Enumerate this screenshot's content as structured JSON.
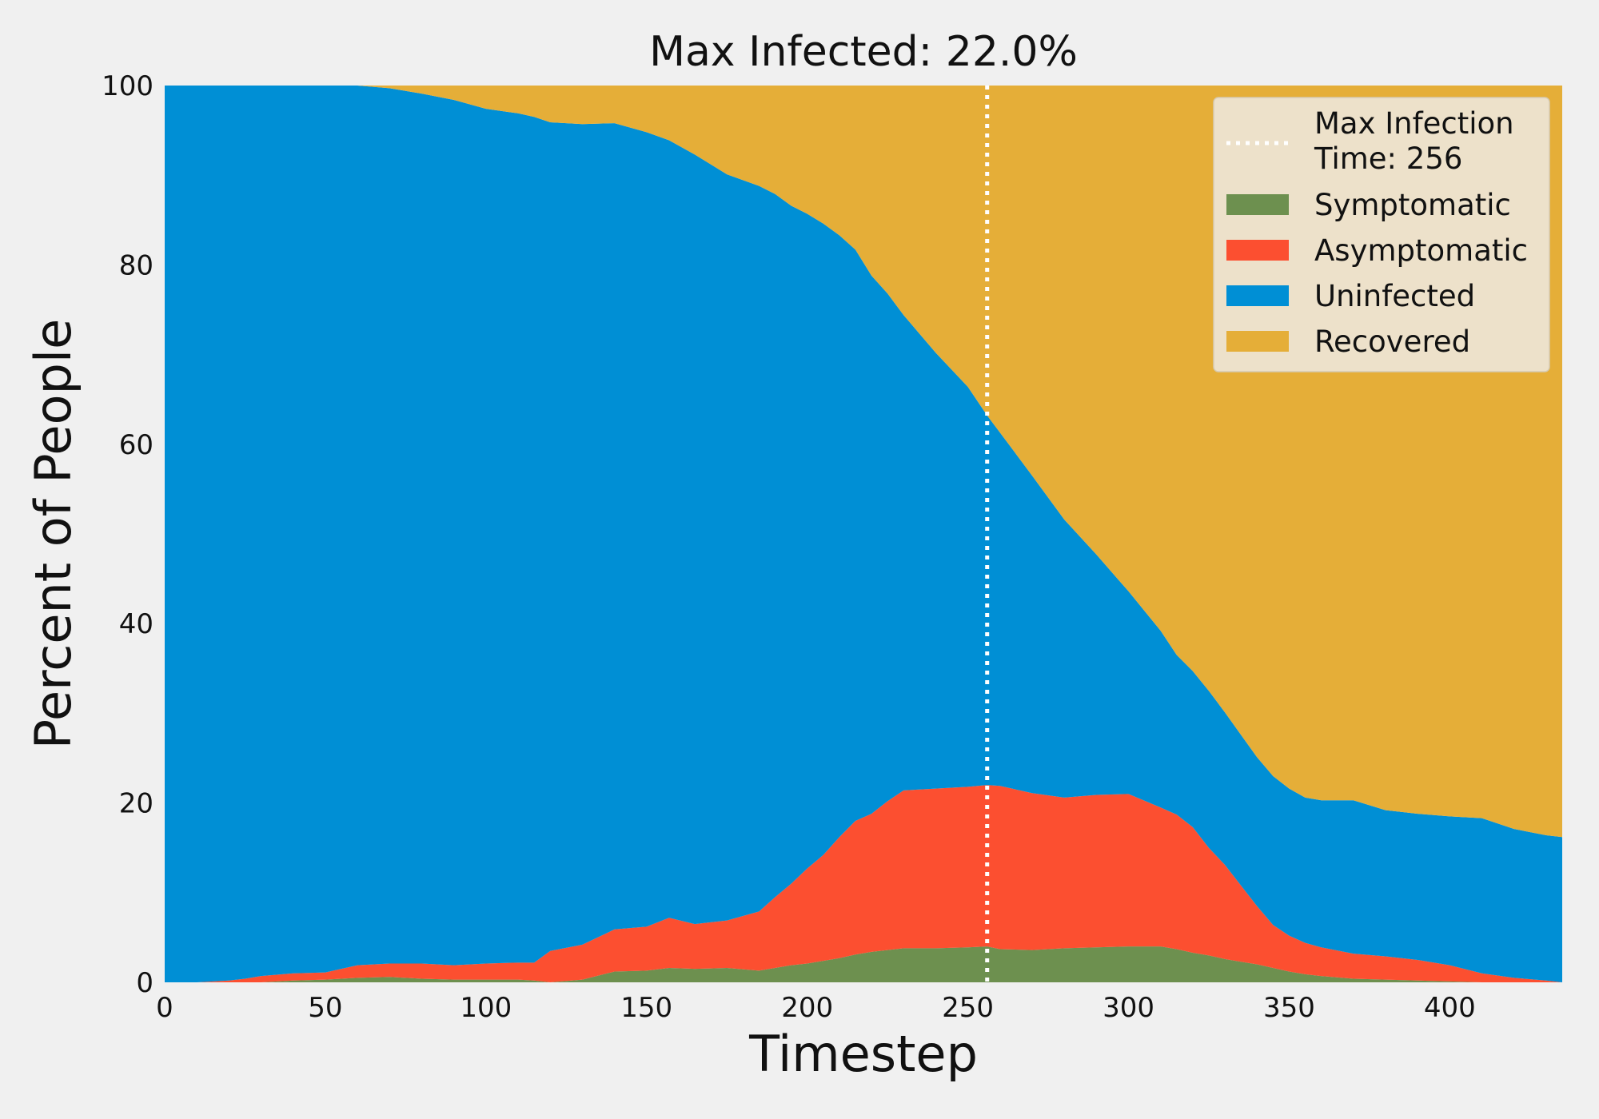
{
  "chart_data": {
    "type": "area",
    "stacked": true,
    "title": "Max Infected: 22.0%",
    "xlabel": "Timestep",
    "ylabel": "Percent of People",
    "xlim": [
      0,
      435
    ],
    "ylim": [
      0,
      100
    ],
    "xticks": [
      "0",
      "50",
      "100",
      "150",
      "200",
      "250",
      "300",
      "350",
      "400"
    ],
    "xtick_values": [
      0,
      50,
      100,
      150,
      200,
      250,
      300,
      350,
      400
    ],
    "yticks": [
      "0",
      "20",
      "40",
      "60",
      "80",
      "100"
    ],
    "ytick_values": [
      0,
      20,
      40,
      60,
      80,
      100
    ],
    "grid": false,
    "legend_position": "top-right",
    "max_infection": {
      "label": "Max Infection\nTime: 256",
      "x": 256,
      "color": "#ffffff"
    },
    "x": [
      0,
      10,
      15,
      20,
      25,
      30,
      40,
      50,
      60,
      70,
      80,
      90,
      100,
      110,
      115,
      120,
      130,
      140,
      150,
      157,
      165,
      175,
      185,
      190,
      195,
      200,
      205,
      210,
      215,
      220,
      225,
      230,
      240,
      250,
      256,
      260,
      270,
      280,
      290,
      300,
      310,
      315,
      320,
      325,
      330,
      335,
      340,
      345,
      350,
      355,
      360,
      370,
      380,
      390,
      400,
      410,
      420,
      430,
      435
    ],
    "series": [
      {
        "name": "Symptomatic",
        "color": "#6d904f",
        "values": [
          0,
          0,
          0,
          0,
          0,
          0,
          0.2,
          0.3,
          0.5,
          0.6,
          0.4,
          0.3,
          0.3,
          0.3,
          0.2,
          0,
          0.3,
          1.2,
          1.3,
          1.6,
          1.5,
          1.6,
          1.3,
          1.6,
          1.9,
          2.1,
          2.4,
          2.7,
          3.1,
          3.4,
          3.6,
          3.8,
          3.8,
          3.9,
          4.0,
          3.7,
          3.6,
          3.8,
          3.9,
          4.0,
          4.0,
          3.7,
          3.3,
          3.0,
          2.6,
          2.3,
          2.0,
          1.6,
          1.2,
          0.9,
          0.7,
          0.4,
          0.3,
          0.2,
          0.1,
          0,
          0,
          0,
          0
        ]
      },
      {
        "name": "Asymptomatic",
        "color": "#fc4f30",
        "values": [
          0,
          0,
          0.1,
          0.2,
          0.4,
          0.7,
          0.8,
          0.8,
          1.4,
          1.5,
          1.7,
          1.6,
          1.8,
          1.9,
          2.0,
          3.5,
          3.9,
          4.7,
          4.9,
          5.6,
          5.0,
          5.3,
          6.6,
          7.9,
          9.1,
          10.6,
          11.8,
          13.5,
          14.9,
          15.4,
          16.6,
          17.6,
          17.8,
          17.9,
          18.0,
          18.2,
          17.5,
          16.8,
          17.0,
          17.0,
          15.5,
          15.0,
          14.0,
          12.0,
          10.5,
          8.5,
          6.5,
          4.8,
          4.0,
          3.5,
          3.2,
          2.8,
          2.6,
          2.3,
          1.8,
          1.0,
          0.5,
          0.2,
          0
        ]
      },
      {
        "name": "Uninfected",
        "color": "#008fd5",
        "values": [
          100,
          100,
          99.9,
          99.8,
          99.6,
          99.3,
          99.0,
          98.9,
          98.1,
          97.6,
          97.0,
          96.5,
          95.3,
          94.7,
          94.3,
          92.4,
          91.5,
          89.9,
          88.6,
          86.7,
          85.8,
          83.2,
          80.9,
          78.4,
          75.6,
          73.0,
          70.4,
          67.1,
          63.7,
          60.0,
          56.6,
          53.0,
          48.6,
          44.6,
          41.2,
          39.4,
          35.4,
          31.0,
          26.8,
          22.6,
          19.7,
          17.8,
          17.4,
          17.5,
          17.0,
          16.8,
          16.6,
          16.6,
          16.4,
          16.2,
          16.4,
          17.1,
          16.3,
          16.3,
          16.6,
          17.3,
          16.6,
          16.2,
          16.2
        ]
      },
      {
        "name": "Recovered",
        "color": "#e5ae38",
        "values": [
          0,
          0,
          0,
          0,
          0,
          0,
          0,
          0,
          0,
          0.3,
          0.9,
          1.6,
          2.6,
          3.1,
          3.5,
          4.1,
          4.3,
          4.2,
          5.2,
          6.1,
          7.7,
          9.9,
          11.2,
          12.1,
          13.4,
          14.3,
          15.4,
          16.7,
          18.3,
          21.2,
          23.2,
          25.6,
          29.8,
          33.6,
          36.8,
          38.7,
          43.5,
          48.4,
          52.3,
          56.4,
          60.8,
          63.5,
          65.3,
          67.5,
          69.9,
          72.4,
          74.9,
          77.0,
          78.4,
          79.4,
          79.7,
          79.7,
          80.8,
          81.2,
          81.5,
          81.7,
          82.9,
          83.6,
          83.8
        ]
      }
    ]
  }
}
